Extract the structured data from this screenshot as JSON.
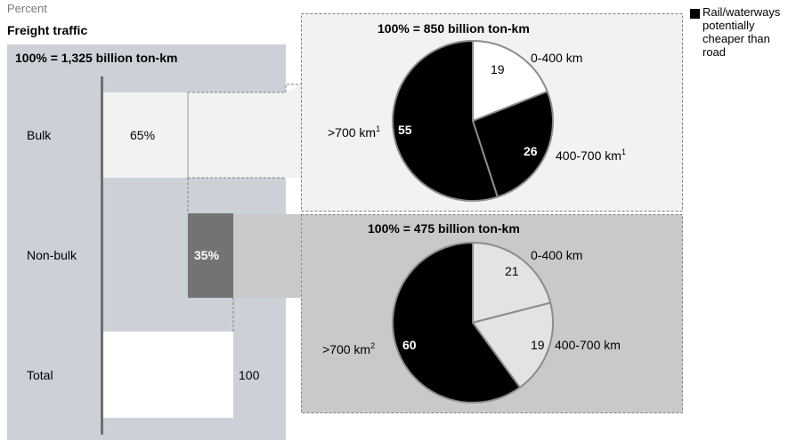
{
  "header": {
    "unit_label": "Percent",
    "section_title": "Freight traffic",
    "total_label": "100% = 1,325 billion ton-km"
  },
  "legend": {
    "label": "Rail/waterways potentially cheaper than road",
    "color": "#000000"
  },
  "chart_data": [
    {
      "type": "bar",
      "categories": [
        "Bulk",
        "Non-bulk",
        "Total"
      ],
      "values": [
        65,
        35,
        100
      ],
      "value_labels": [
        "65%",
        "35%",
        "100"
      ],
      "unit_label": "Percent",
      "title": "Freight traffic",
      "total": "100% = 1,325 billion ton-km",
      "colors": {
        "bulk": "#f2f2f2",
        "non_bulk": "#737373",
        "total": "#ffffff"
      }
    },
    {
      "type": "pie",
      "title": "100% = 850 billion ton-km",
      "segment_of": "Bulk",
      "slices": [
        {
          "label": "0-400 km",
          "value": 19,
          "color": "#ffffff"
        },
        {
          "label": "400-700 km",
          "footnote": "1",
          "value": 26,
          "color": "#000000"
        },
        {
          "label": ">700 km",
          "footnote": "1",
          "value": 55,
          "color": "#000000"
        }
      ]
    },
    {
      "type": "pie",
      "title": "100% = 475 billion ton-km",
      "segment_of": "Non-bulk",
      "slices": [
        {
          "label": "0-400 km",
          "value": 21,
          "color": "#e3e3e3"
        },
        {
          "label": "400-700 km",
          "value": 19,
          "color": "#e3e3e3"
        },
        {
          "label": ">700 km",
          "footnote": "2",
          "value": 60,
          "color": "#000000"
        }
      ]
    }
  ]
}
